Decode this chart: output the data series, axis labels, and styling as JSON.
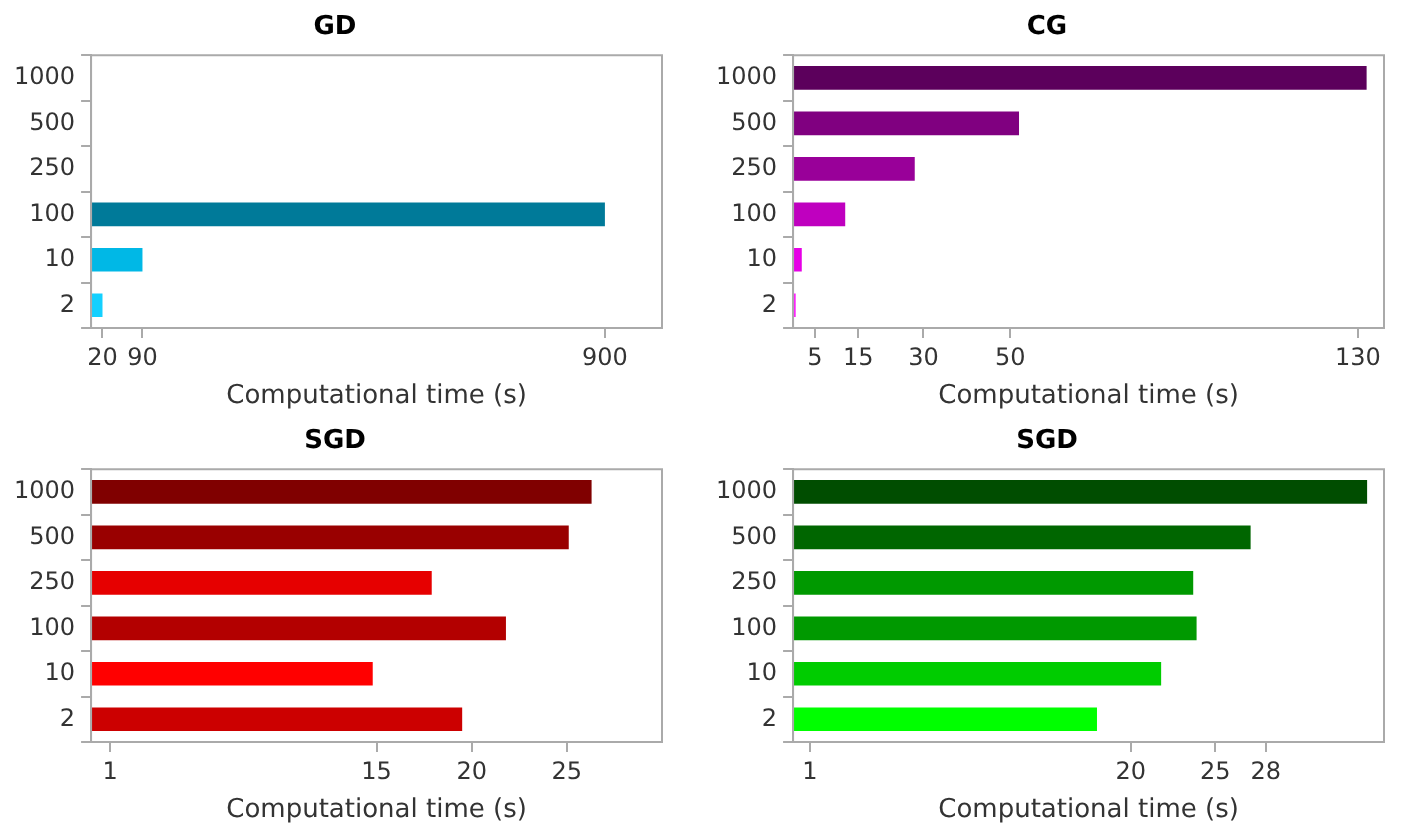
{
  "chart_data": [
    {
      "type": "bar",
      "orientation": "horizontal",
      "title": "GD",
      "xlabel": "Computational time (s)",
      "categories": [
        "1000",
        "500",
        "250",
        "100",
        "10",
        "2"
      ],
      "values": [
        null,
        null,
        null,
        900,
        90,
        20
      ],
      "colors": [
        "#007a99",
        "#007a99",
        "#007a99",
        "#007a99",
        "#00b8e6",
        "#14d0ff"
      ],
      "xlim": [
        0,
        1000
      ],
      "xticks": [
        20,
        90,
        900
      ],
      "grid": false,
      "legend": false
    },
    {
      "type": "bar",
      "orientation": "horizontal",
      "title": "CG",
      "xlabel": "Computational time (s)",
      "categories": [
        "1000",
        "500",
        "250",
        "100",
        "10",
        "2"
      ],
      "values": [
        132,
        52,
        28,
        12,
        2,
        0.6
      ],
      "colors": [
        "#5c005c",
        "#800080",
        "#990099",
        "#bf00bf",
        "#e600e6",
        "#ff1aff"
      ],
      "xlim": [
        0,
        136
      ],
      "xticks": [
        5,
        15,
        30,
        50,
        130
      ],
      "grid": false,
      "legend": false
    },
    {
      "type": "bar",
      "orientation": "horizontal",
      "title": "SGD",
      "xlabel": "Computational time (s)",
      "categories": [
        "1000",
        "500",
        "250",
        "100",
        "10",
        "2"
      ],
      "values": [
        26.3,
        25.1,
        17.9,
        21.8,
        14.8,
        19.5
      ],
      "colors": [
        "#800000",
        "#990000",
        "#e60000",
        "#b30000",
        "#ff0000",
        "#cc0000"
      ],
      "xlim": [
        0,
        30
      ],
      "xticks": [
        1,
        15,
        20,
        25
      ],
      "grid": false,
      "legend": false
    },
    {
      "type": "bar",
      "orientation": "horizontal",
      "title": "SGD",
      "xlabel": "Computational time (s)",
      "categories": [
        "1000",
        "500",
        "250",
        "100",
        "10",
        "2"
      ],
      "values": [
        34,
        27.1,
        23.7,
        23.9,
        21.8,
        18
      ],
      "colors": [
        "#004d00",
        "#006600",
        "#009900",
        "#009900",
        "#00cc00",
        "#00ff00"
      ],
      "xlim": [
        0,
        35
      ],
      "xticks": [
        1,
        20,
        25,
        28
      ],
      "grid": false,
      "legend": false
    }
  ]
}
